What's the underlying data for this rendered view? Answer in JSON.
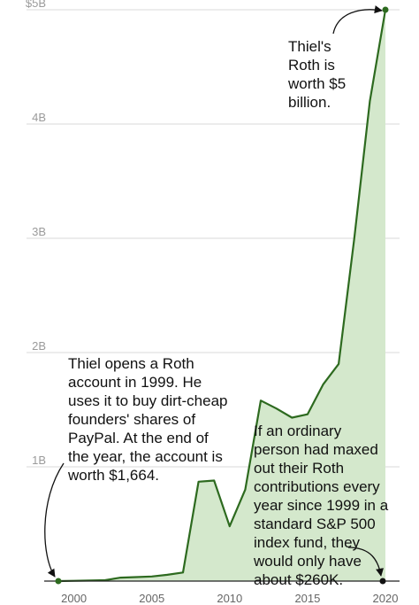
{
  "chart_data": {
    "type": "area",
    "title": "",
    "xlabel": "",
    "ylabel": "",
    "x_ticks": [
      "2000",
      "2005",
      "2010",
      "2015",
      "2020"
    ],
    "y_ticks": [
      {
        "value": 1000000000,
        "label": "1B"
      },
      {
        "value": 2000000000,
        "label": "2B"
      },
      {
        "value": 3000000000,
        "label": "3B"
      },
      {
        "value": 4000000000,
        "label": "4B"
      },
      {
        "value": 5000000000,
        "label": "$5B"
      }
    ],
    "xlim": [
      1999,
      2020
    ],
    "ylim": [
      0,
      5000000000
    ],
    "grid": true,
    "series": [
      {
        "x": [
          1999,
          2000,
          2001,
          2002,
          2003,
          2004,
          2005,
          2006,
          2007,
          2008,
          2009,
          2010,
          2011,
          2012,
          2013,
          2014,
          2015,
          2016,
          2017,
          2018,
          2019,
          2020
        ],
        "values": [
          1664,
          2000000,
          5000000,
          8000000,
          30000000,
          35000000,
          40000000,
          55000000,
          75000000,
          870000000,
          880000000,
          480000000,
          800000000,
          1580000000,
          1510000000,
          1430000000,
          1460000000,
          1720000000,
          1900000000,
          3000000000,
          4200000000,
          5000000000
        ]
      }
    ],
    "annotations": [
      "Thiel's\nRoth is\nworth $5\nbillion.",
      "Thiel opens a Roth\naccount in 1999. He\nuses it to buy dirt-cheap\nfounders' shares of\nPayPal. At the end of\nthe year, the account is\nworth $1,664.",
      "If an ordinary\nperson had maxed\nout their Roth\ncontributions every\nyear since 1999 in a\nstandard S&P 500\nindex fund, they\nwould only have\nabout $260K."
    ],
    "colors": {
      "line": "#2d6a1f",
      "fill": "#d4e8cc",
      "marker": "#2d6a1f",
      "baseline": "#222222",
      "grid": "#d9d9d9"
    }
  }
}
